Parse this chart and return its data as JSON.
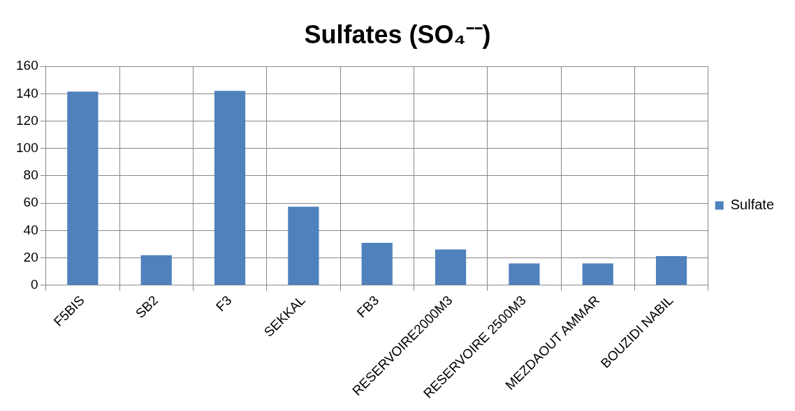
{
  "chart_data": {
    "type": "bar",
    "title": "Sulfates (SO₄⁻⁻)",
    "categories": [
      "F5BIS",
      "SB2",
      "F3",
      "SEKKAL",
      "FB3",
      "RESERVOIRE2000M3",
      "RESERVOIRE 2500M3",
      "MEZDAOUT AMMAR",
      "BOUZIDI NABIL"
    ],
    "series": [
      {
        "name": "Sulfate",
        "color": "#4f81bd",
        "values": [
          141.6,
          22,
          142.1,
          57.4,
          31,
          26.1,
          16,
          16,
          21.3
        ]
      }
    ],
    "ylim": [
      0,
      160
    ],
    "yticks": [
      0,
      20,
      40,
      60,
      80,
      100,
      120,
      140,
      160
    ],
    "grid": true,
    "legend": "right"
  }
}
